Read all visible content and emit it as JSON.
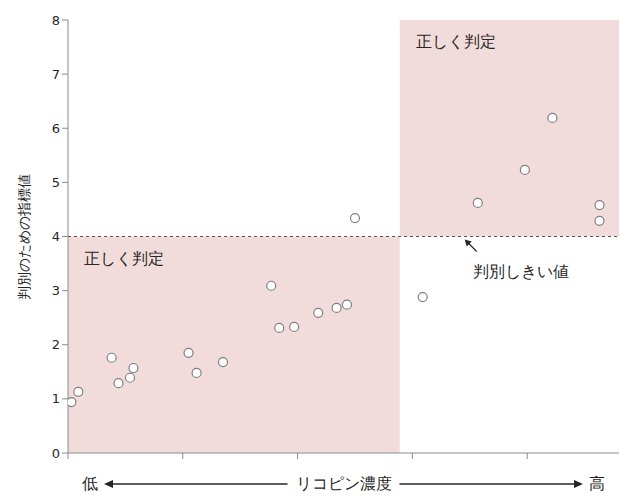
{
  "chart_data": {
    "type": "scatter",
    "y_label": "判別のための指標値",
    "x_label": "リコピン濃度",
    "x_low_label": "低",
    "x_high_label": "高",
    "x": [
      0.03,
      0.09,
      0.38,
      0.44,
      0.54,
      0.57,
      1.05,
      1.12,
      1.35,
      1.77,
      1.84,
      1.97,
      2.18,
      2.34,
      2.43,
      2.5,
      3.09,
      3.57,
      3.98,
      4.22,
      4.63,
      4.63
    ],
    "values": [
      0.94,
      1.13,
      1.76,
      1.29,
      1.39,
      1.57,
      1.85,
      1.48,
      1.68,
      3.09,
      2.31,
      2.33,
      2.59,
      2.68,
      2.74,
      4.34,
      2.88,
      4.62,
      5.23,
      6.19,
      4.58,
      4.29
    ],
    "color": "#7f7f7f",
    "marker": "circle_open",
    "xlim": [
      0,
      4.8
    ],
    "xticks": [
      0,
      1,
      2,
      3,
      4
    ],
    "ylim": [
      0,
      8
    ],
    "yticks": [
      0,
      1,
      2,
      3,
      4,
      5,
      6,
      7,
      8
    ],
    "tick_labels": "y",
    "grid": false,
    "regions": [
      {
        "xlim": [
          0,
          2.89
        ],
        "ylim": [
          0,
          4
        ],
        "label": "正しく判定",
        "color": "#f2dcdb"
      },
      {
        "xlim": [
          2.89,
          4.8
        ],
        "ylim": [
          4,
          8
        ],
        "label": "正しく判定",
        "color": "#f2dcdb"
      }
    ],
    "threshold": {
      "value": 4,
      "label": "判別しきい値",
      "line_style": "dashed"
    }
  }
}
